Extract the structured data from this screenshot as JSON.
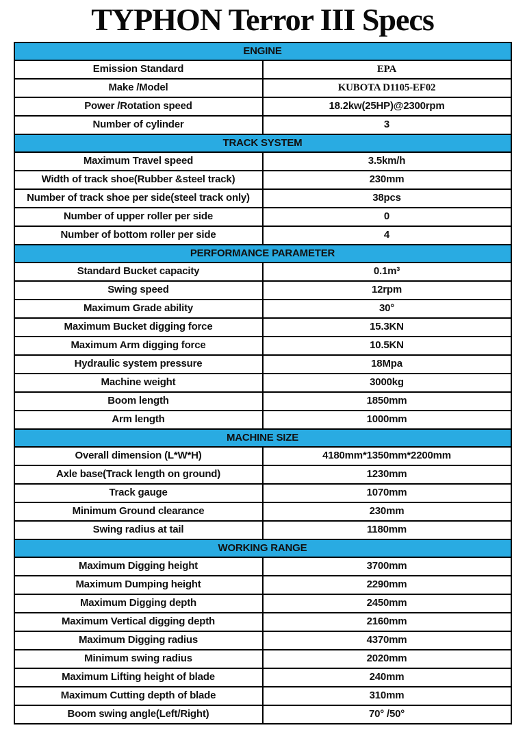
{
  "page": {
    "title": "TYPHON Terror III Specs"
  },
  "colors": {
    "section_header_bg": "#29abe2",
    "section_header_text": "#0d3050",
    "red_label": "#cc2328",
    "border": "#000000",
    "body_text": "#111111"
  },
  "table": {
    "sections": [
      {
        "header": "ENGINE",
        "rows": [
          {
            "label": "Emission Standard",
            "value": "EPA",
            "serif": true
          },
          {
            "label": "Make /Model",
            "value": "KUBOTA D1105-EF02",
            "serif": true
          },
          {
            "label": "Power /Rotation speed",
            "value": "18.2kw(25HP)@2300rpm"
          },
          {
            "label": "Number of cylinder",
            "value": "3"
          }
        ]
      },
      {
        "header": "TRACK SYSTEM",
        "rows": [
          {
            "label": "Maximum Travel speed",
            "value": "3.5km/h"
          },
          {
            "label": "Width of track shoe(Rubber &steel track)",
            "value": "230mm"
          },
          {
            "label": "Number of track shoe per side(steel track only)",
            "value": "38pcs"
          },
          {
            "label": "Number of upper roller per side",
            "value": "0"
          },
          {
            "label": "Number of bottom roller per side",
            "value": "4"
          }
        ]
      },
      {
        "header": "PERFORMANCE PARAMETER",
        "rows": [
          {
            "label": "Standard Bucket capacity",
            "value": "0.1m³"
          },
          {
            "label": "Swing speed",
            "value": "12rpm"
          },
          {
            "label": "Maximum Grade ability",
            "value": "30°"
          },
          {
            "label": "Maximum Bucket digging force",
            "value": "15.3KN"
          },
          {
            "label": "Maximum Arm digging force",
            "value": "10.5KN"
          },
          {
            "label": "Hydraulic system pressure",
            "value": "18Mpa"
          },
          {
            "label": "Machine weight",
            "value": "3000kg"
          },
          {
            "label": "Boom length",
            "value": "1850mm",
            "red": true
          },
          {
            "label": "Arm length",
            "value": "1000mm",
            "red": true
          }
        ]
      },
      {
        "header": "MACHINE SIZE",
        "rows": [
          {
            "label": "Overall dimension (L*W*H)",
            "value": "4180mm*1350mm*2200mm"
          },
          {
            "label": "Axle base(Track length on ground)",
            "value": "1230mm"
          },
          {
            "label": "Track gauge",
            "value": "1070mm"
          },
          {
            "label": "Minimum Ground clearance",
            "value": "230mm"
          },
          {
            "label": "Swing radius at tail",
            "value": "1180mm"
          }
        ]
      },
      {
        "header": "WORKING RANGE",
        "rows": [
          {
            "label": "Maximum Digging height",
            "value": "3700mm"
          },
          {
            "label": "Maximum Dumping height",
            "value": "2290mm"
          },
          {
            "label": "Maximum Digging depth",
            "value": "2450mm"
          },
          {
            "label": "Maximum Vertical digging depth",
            "value": "2160mm"
          },
          {
            "label": "Maximum Digging radius",
            "value": "4370mm"
          },
          {
            "label": "Minimum swing radius",
            "value": "2020mm"
          },
          {
            "label": "Maximum Lifting height of blade",
            "value": "240mm"
          },
          {
            "label": "Maximum Cutting depth of blade",
            "value": "310mm"
          },
          {
            "label": "Boom swing angle(Left/Right)",
            "value": "70° /50°"
          }
        ]
      }
    ]
  }
}
